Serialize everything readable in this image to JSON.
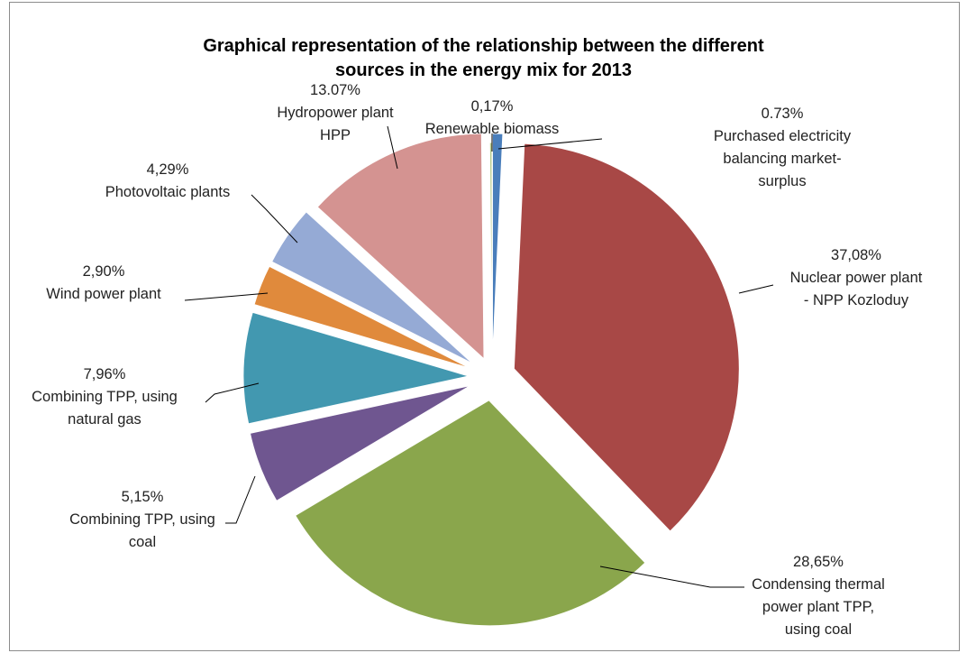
{
  "chart_data": {
    "type": "pie",
    "title_lines": [
      "Graphical  representation of the relationship between the different",
      "sources in the energy mix for 2013"
    ],
    "slices": [
      {
        "label_lines": [
          "0.73%",
          "Purchased electricity",
          "balancing market-",
          "surplus"
        ],
        "value": 0.73,
        "color": "#4a7ebb"
      },
      {
        "label_lines": [
          "37,08%",
          "Nuclear power plant",
          "- NPP Kozloduy"
        ],
        "value": 37.08,
        "color": "#a84846"
      },
      {
        "label_lines": [
          "28,65%",
          "Condensing thermal",
          "power plant TPP,",
          "using coal"
        ],
        "value": 28.65,
        "color": "#8aa64c"
      },
      {
        "label_lines": [
          "5,15%",
          "Combining TPP, using",
          "coal"
        ],
        "value": 5.15,
        "color": "#6f5690"
      },
      {
        "label_lines": [
          "7,96%",
          "Combining TPP, using",
          "natural gas"
        ],
        "value": 7.96,
        "color": "#4298b0"
      },
      {
        "label_lines": [
          "2,90%",
          "Wind power plant"
        ],
        "value": 2.9,
        "color": "#e08a3c"
      },
      {
        "label_lines": [
          "4,29%",
          "Photovoltaic plants"
        ],
        "value": 4.29,
        "color": "#95aad5"
      },
      {
        "label_lines": [
          "13.07%",
          "Hydropower plant",
          "HPP"
        ],
        "value": 13.07,
        "color": "#d49391"
      },
      {
        "label_lines": [
          "0,17%",
          "Renewable  biomass"
        ],
        "value": 0.17,
        "color": "#b9cc8c"
      }
    ]
  }
}
